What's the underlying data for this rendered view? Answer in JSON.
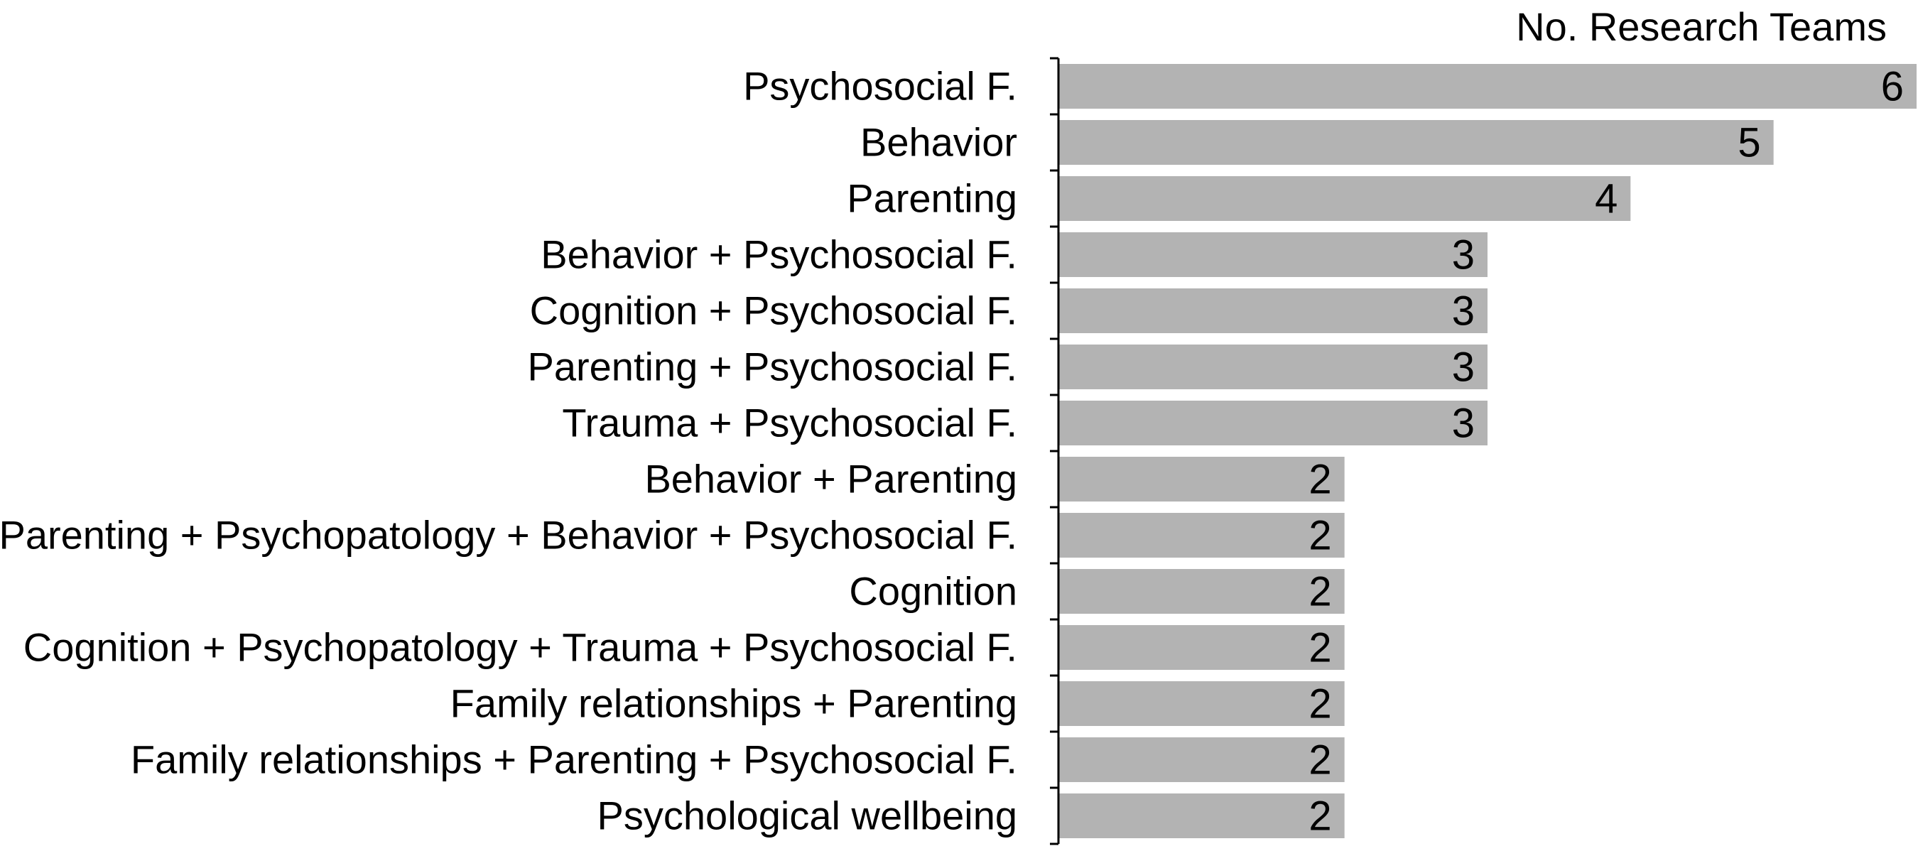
{
  "chart_data": {
    "type": "bar",
    "orientation": "horizontal",
    "title": "No. Research Teams",
    "categories": [
      "Psychosocial F.",
      "Behavior",
      "Parenting",
      "Behavior + Psychosocial F.",
      "Cognition + Psychosocial F.",
      "Parenting + Psychosocial F.",
      "Trauma + Psychosocial F.",
      "Behavior + Parenting",
      "Parenting + Psychopatology + Behavior + Psychosocial F.",
      "Cognition",
      "Cognition + Psychopatology + Trauma + Psychosocial F.",
      "Family relationships + Parenting",
      "Family relationships + Parenting + Psychosocial F.",
      "Psychological wellbeing"
    ],
    "values": [
      6,
      5,
      4,
      3,
      3,
      3,
      3,
      2,
      2,
      2,
      2,
      2,
      2,
      2
    ],
    "xlim": [
      0,
      6
    ],
    "grid": false,
    "legend": "none",
    "bar_color": "#b3b3b3"
  }
}
